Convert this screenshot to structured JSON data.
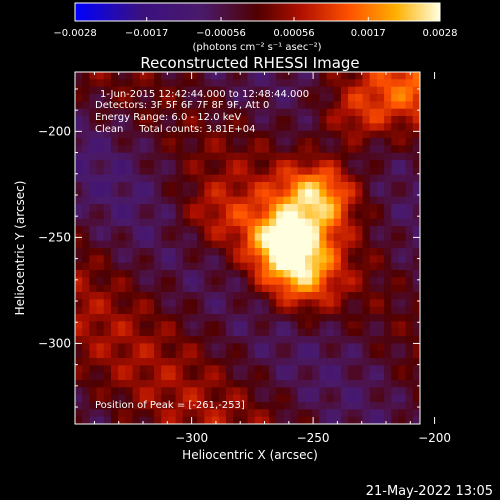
{
  "chart_data": {
    "type": "heatmap",
    "title": "Reconstructed RHESSI Image",
    "xlabel": "Heliocentric X (arcsec)",
    "ylabel": "Heliocentric Y (arcsec)",
    "xlim": [
      -348,
      -206
    ],
    "ylim": [
      -338,
      -172
    ],
    "x_ticks": [
      -300,
      -250,
      -200
    ],
    "y_ticks": [
      -200,
      -250,
      -300
    ],
    "colorbar": {
      "range": [
        -0.0028,
        0.0028
      ],
      "tick_labels": [
        "-0.0028",
        "-0.0017",
        "-0.00056",
        "0.00056",
        "0.0017",
        "0.0028"
      ],
      "unit_label": "(photons cm⁻² s⁻¹ asec⁻²)"
    },
    "annotations": [
      "1-Jun-2015 12:42:44.000 to 12:48:44.000",
      "Detectors: 3F 5F 6F 7F 8F 9F, Att 0",
      "Energy Range: 6.0 - 12.0 keV",
      "Clean     Total counts: 3.81E+04"
    ],
    "peak_text": "Position of Peak = [-261,-253]",
    "peak": [
      -261,
      -253
    ],
    "sources": [
      {
        "x": -261,
        "y": -253,
        "amp": 0.0028
      },
      {
        "x": -248,
        "y": -230,
        "amp": 0.0022
      },
      {
        "x": -255,
        "y": -270,
        "amp": 0.0016
      },
      {
        "x": -232,
        "y": -192,
        "amp": 0.0012
      },
      {
        "x": -212,
        "y": -180,
        "amp": 0.001
      },
      {
        "x": -290,
        "y": -240,
        "amp": 0.0008
      }
    ],
    "grid": false
  },
  "footer": {
    "timestamp": "21-May-2022 13:05"
  }
}
